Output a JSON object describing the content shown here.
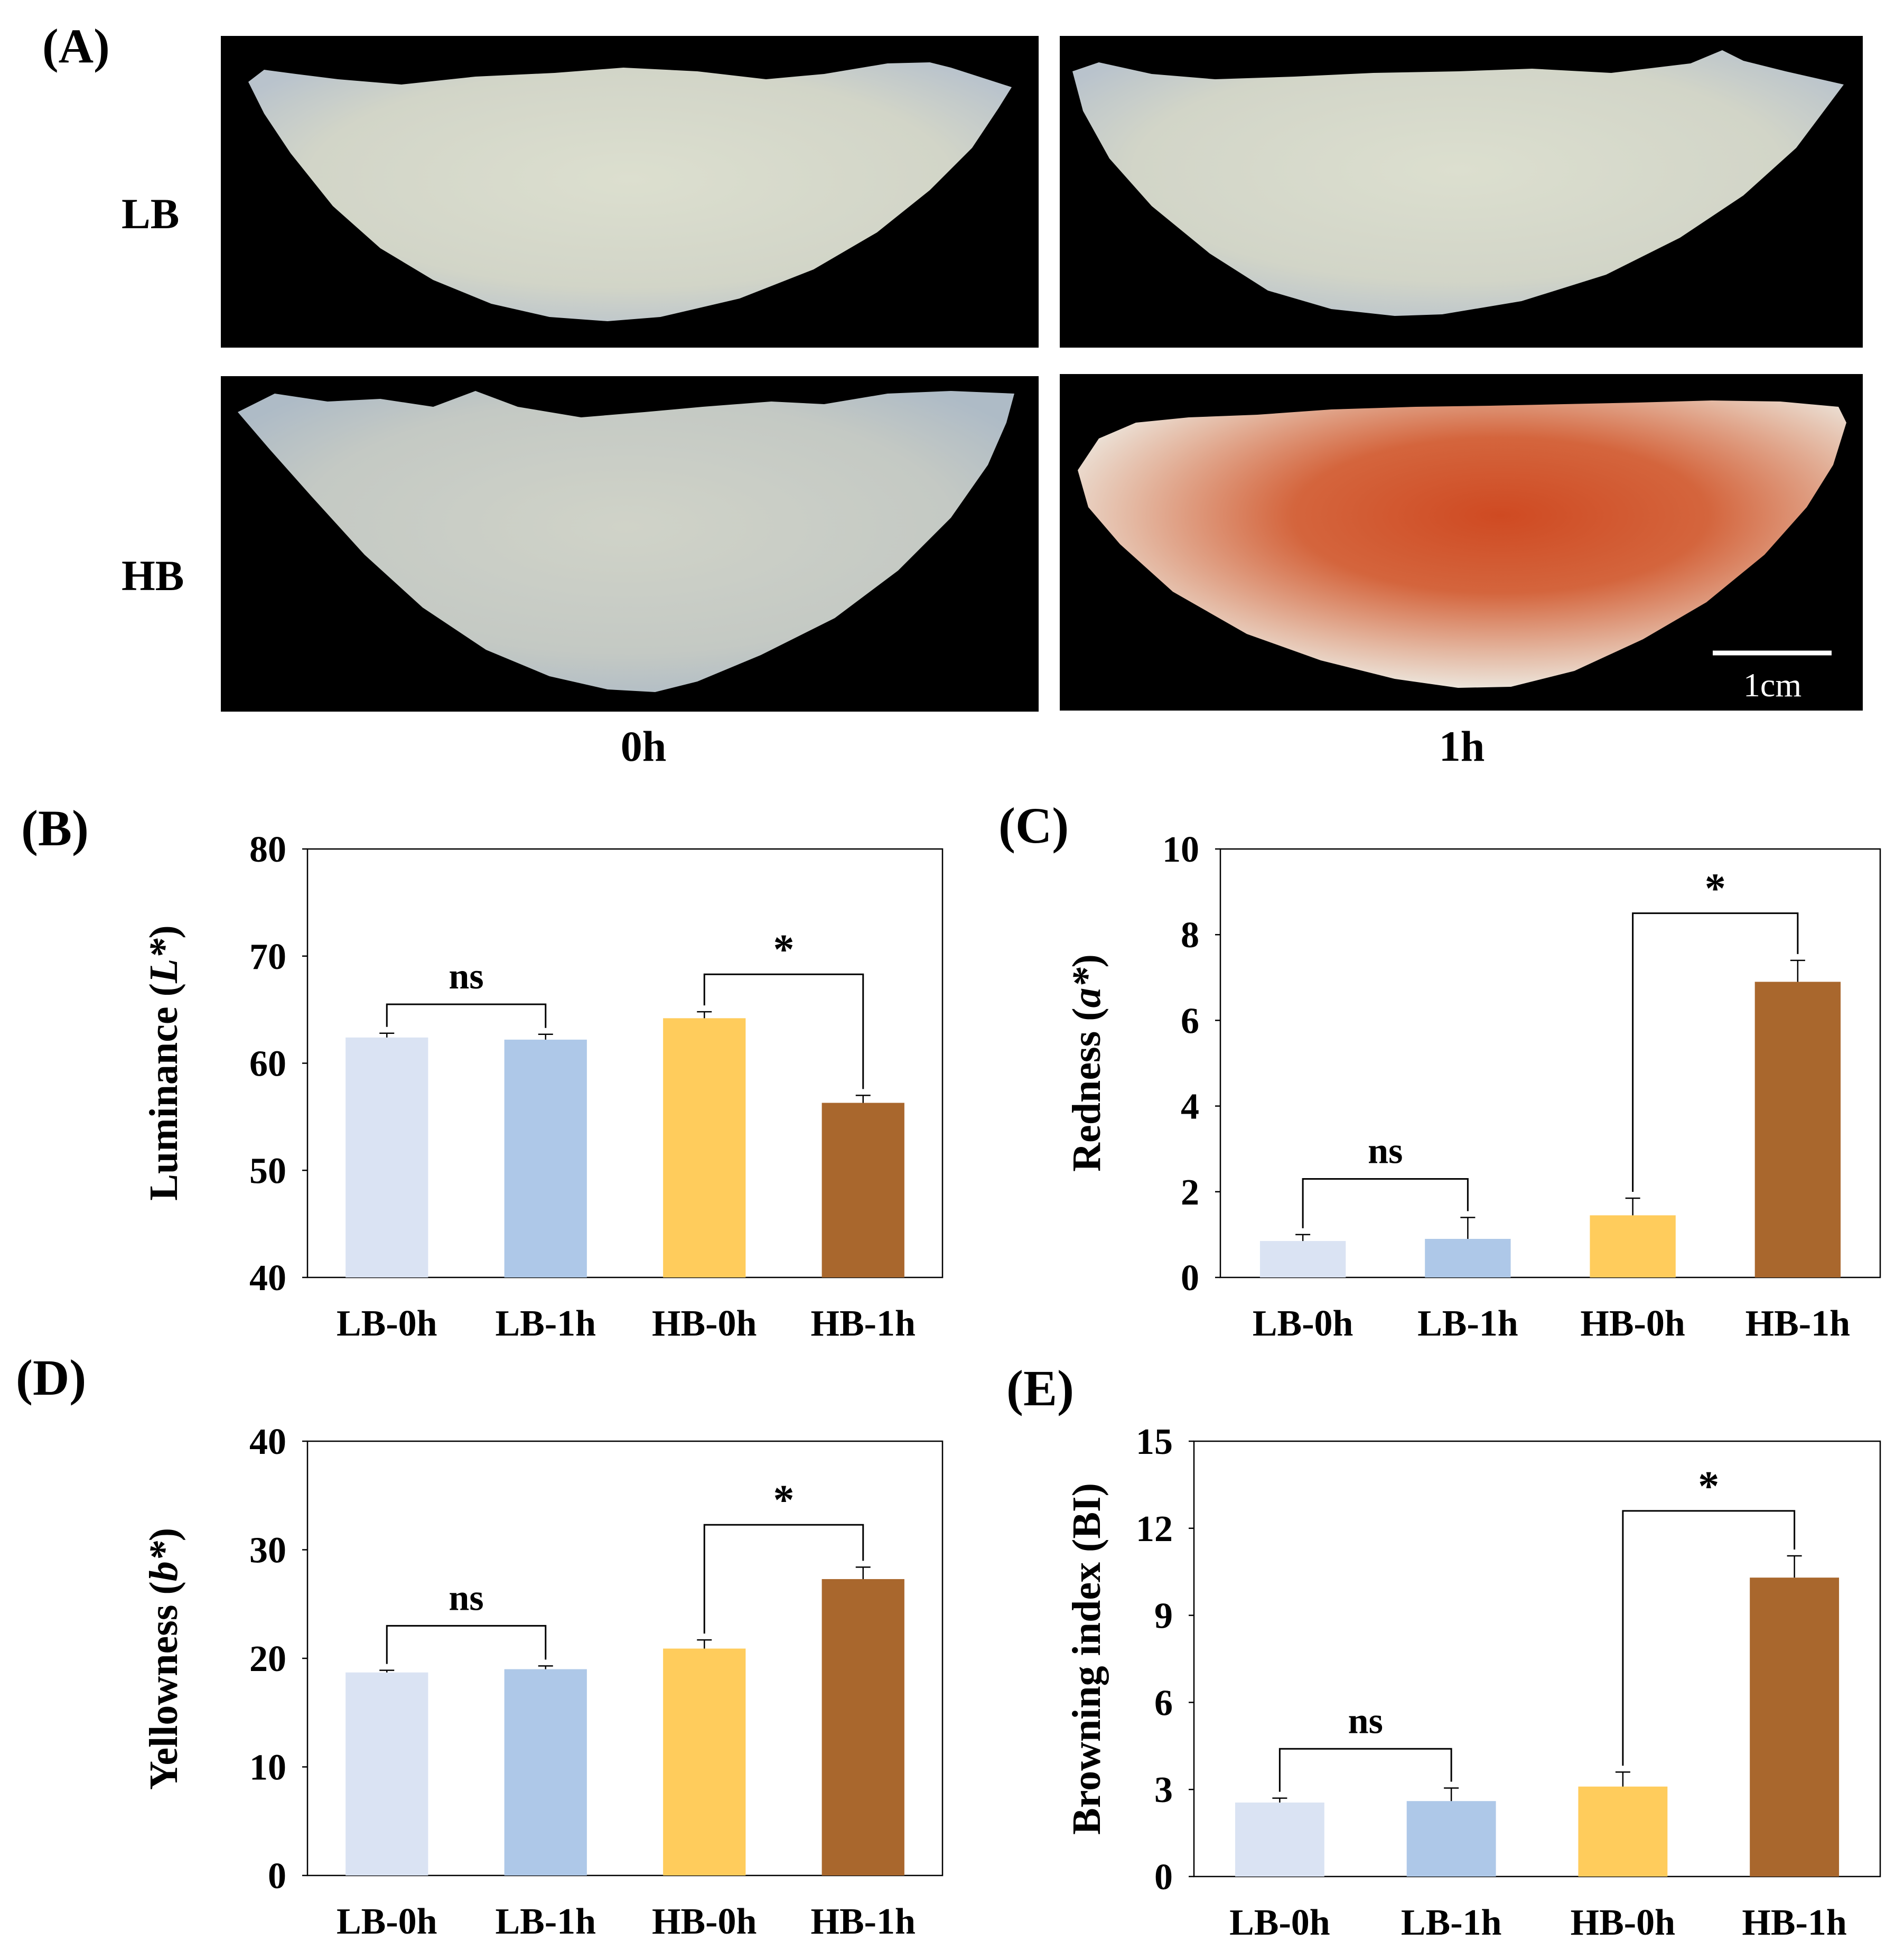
{
  "figure": {
    "panel_a": {
      "label": "(A)",
      "row_labels": [
        "LB",
        "HB"
      ],
      "col_labels": [
        "0h",
        "1h"
      ],
      "scale_bar": "1cm"
    }
  },
  "colors": {
    "LB-0h": "#dae3f3",
    "LB-1h": "#aec8e8",
    "HB-0h": "#ffcc5c",
    "HB-1h": "#a9672d",
    "photo_background": "#000000"
  },
  "chart_data": [
    {
      "panel": "(B)",
      "type": "bar",
      "title": "",
      "xlabel": "",
      "ylabel_main": "Luminance (",
      "ylabel_italic": "L*",
      "ylabel_end": ")",
      "categories": [
        "LB-0h",
        "LB-1h",
        "HB-0h",
        "HB-1h"
      ],
      "values": [
        62.4,
        62.2,
        64.2,
        56.3
      ],
      "errors": [
        0.4,
        0.5,
        0.6,
        0.7
      ],
      "ylim": [
        40,
        80
      ],
      "yticks": [
        40,
        50,
        60,
        70,
        80
      ],
      "comparisons": [
        {
          "from": 0,
          "to": 1,
          "label": "ns",
          "level": 65.5
        },
        {
          "from": 2,
          "to": 3,
          "label": "*",
          "level": 68.3
        }
      ]
    },
    {
      "panel": "(C)",
      "type": "bar",
      "title": "",
      "xlabel": "",
      "ylabel_main": "Redness (",
      "ylabel_italic": "a*",
      "ylabel_end": ")",
      "categories": [
        "LB-0h",
        "LB-1h",
        "HB-0h",
        "HB-1h"
      ],
      "values": [
        0.85,
        0.9,
        1.45,
        6.9
      ],
      "errors": [
        0.15,
        0.5,
        0.4,
        0.5
      ],
      "ylim": [
        0,
        10
      ],
      "yticks": [
        0,
        2,
        4,
        6,
        8,
        10
      ],
      "comparisons": [
        {
          "from": 0,
          "to": 1,
          "label": "ns",
          "level": 2.3
        },
        {
          "from": 2,
          "to": 3,
          "label": "*",
          "level": 8.5
        }
      ]
    },
    {
      "panel": "(D)",
      "type": "bar",
      "title": "",
      "xlabel": "",
      "ylabel_main": "Yellowness (",
      "ylabel_italic": "b*",
      "ylabel_end": ")",
      "categories": [
        "LB-0h",
        "LB-1h",
        "HB-0h",
        "HB-1h"
      ],
      "values": [
        18.7,
        19.0,
        20.9,
        27.3
      ],
      "errors": [
        0.2,
        0.3,
        0.8,
        1.1
      ],
      "ylim": [
        0,
        40
      ],
      "yticks": [
        0,
        10,
        20,
        30,
        40
      ],
      "comparisons": [
        {
          "from": 0,
          "to": 1,
          "label": "ns",
          "level": 23.0
        },
        {
          "from": 2,
          "to": 3,
          "label": "*",
          "level": 32.3
        }
      ]
    },
    {
      "panel": "(E)",
      "type": "bar",
      "title": "",
      "xlabel": "",
      "ylabel_main": "Browning index (BI)",
      "ylabel_italic": "",
      "ylabel_end": "",
      "categories": [
        "LB-0h",
        "LB-1h",
        "HB-0h",
        "HB-1h"
      ],
      "values": [
        2.55,
        2.6,
        3.1,
        10.3
      ],
      "errors": [
        0.15,
        0.45,
        0.5,
        0.75
      ],
      "ylim": [
        0,
        15
      ],
      "yticks": [
        0,
        3,
        6,
        9,
        12,
        15
      ],
      "comparisons": [
        {
          "from": 0,
          "to": 1,
          "label": "ns",
          "level": 4.4
        },
        {
          "from": 2,
          "to": 3,
          "label": "*",
          "level": 12.6
        }
      ]
    }
  ]
}
